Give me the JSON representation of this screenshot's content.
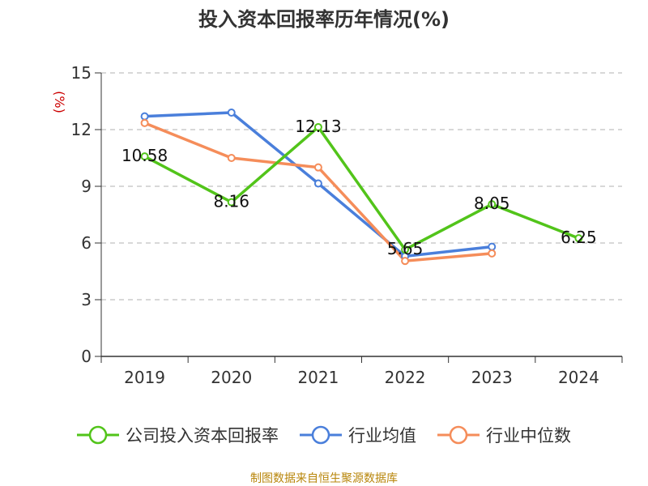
{
  "chart_data": {
    "type": "line",
    "title": "投入资本回报率历年情况(%)",
    "ylabel": "(%)",
    "xlabel": "",
    "categories": [
      "2019",
      "2020",
      "2021",
      "2022",
      "2023",
      "2024"
    ],
    "yticks": [
      "0",
      "3",
      "6",
      "9",
      "12",
      "15"
    ],
    "ylim": [
      0,
      15
    ],
    "grid": true,
    "legend_position": "bottom",
    "series": [
      {
        "name": "公司投入资本回报率",
        "color": "#52c41a",
        "values": [
          10.58,
          8.16,
          12.13,
          5.65,
          8.05,
          6.25
        ],
        "labels": [
          "10.58",
          "8.16",
          "12.13",
          "5.65",
          "8.05",
          "6.25"
        ]
      },
      {
        "name": "行业均值",
        "color": "#4a7fdb",
        "values": [
          12.7,
          12.9,
          9.15,
          5.3,
          5.8,
          null
        ]
      },
      {
        "name": "行业中位数",
        "color": "#f58d5a",
        "values": [
          12.35,
          10.5,
          10.0,
          5.05,
          5.45,
          null
        ]
      }
    ],
    "source": "制图数据来自恒生聚源数据库"
  }
}
